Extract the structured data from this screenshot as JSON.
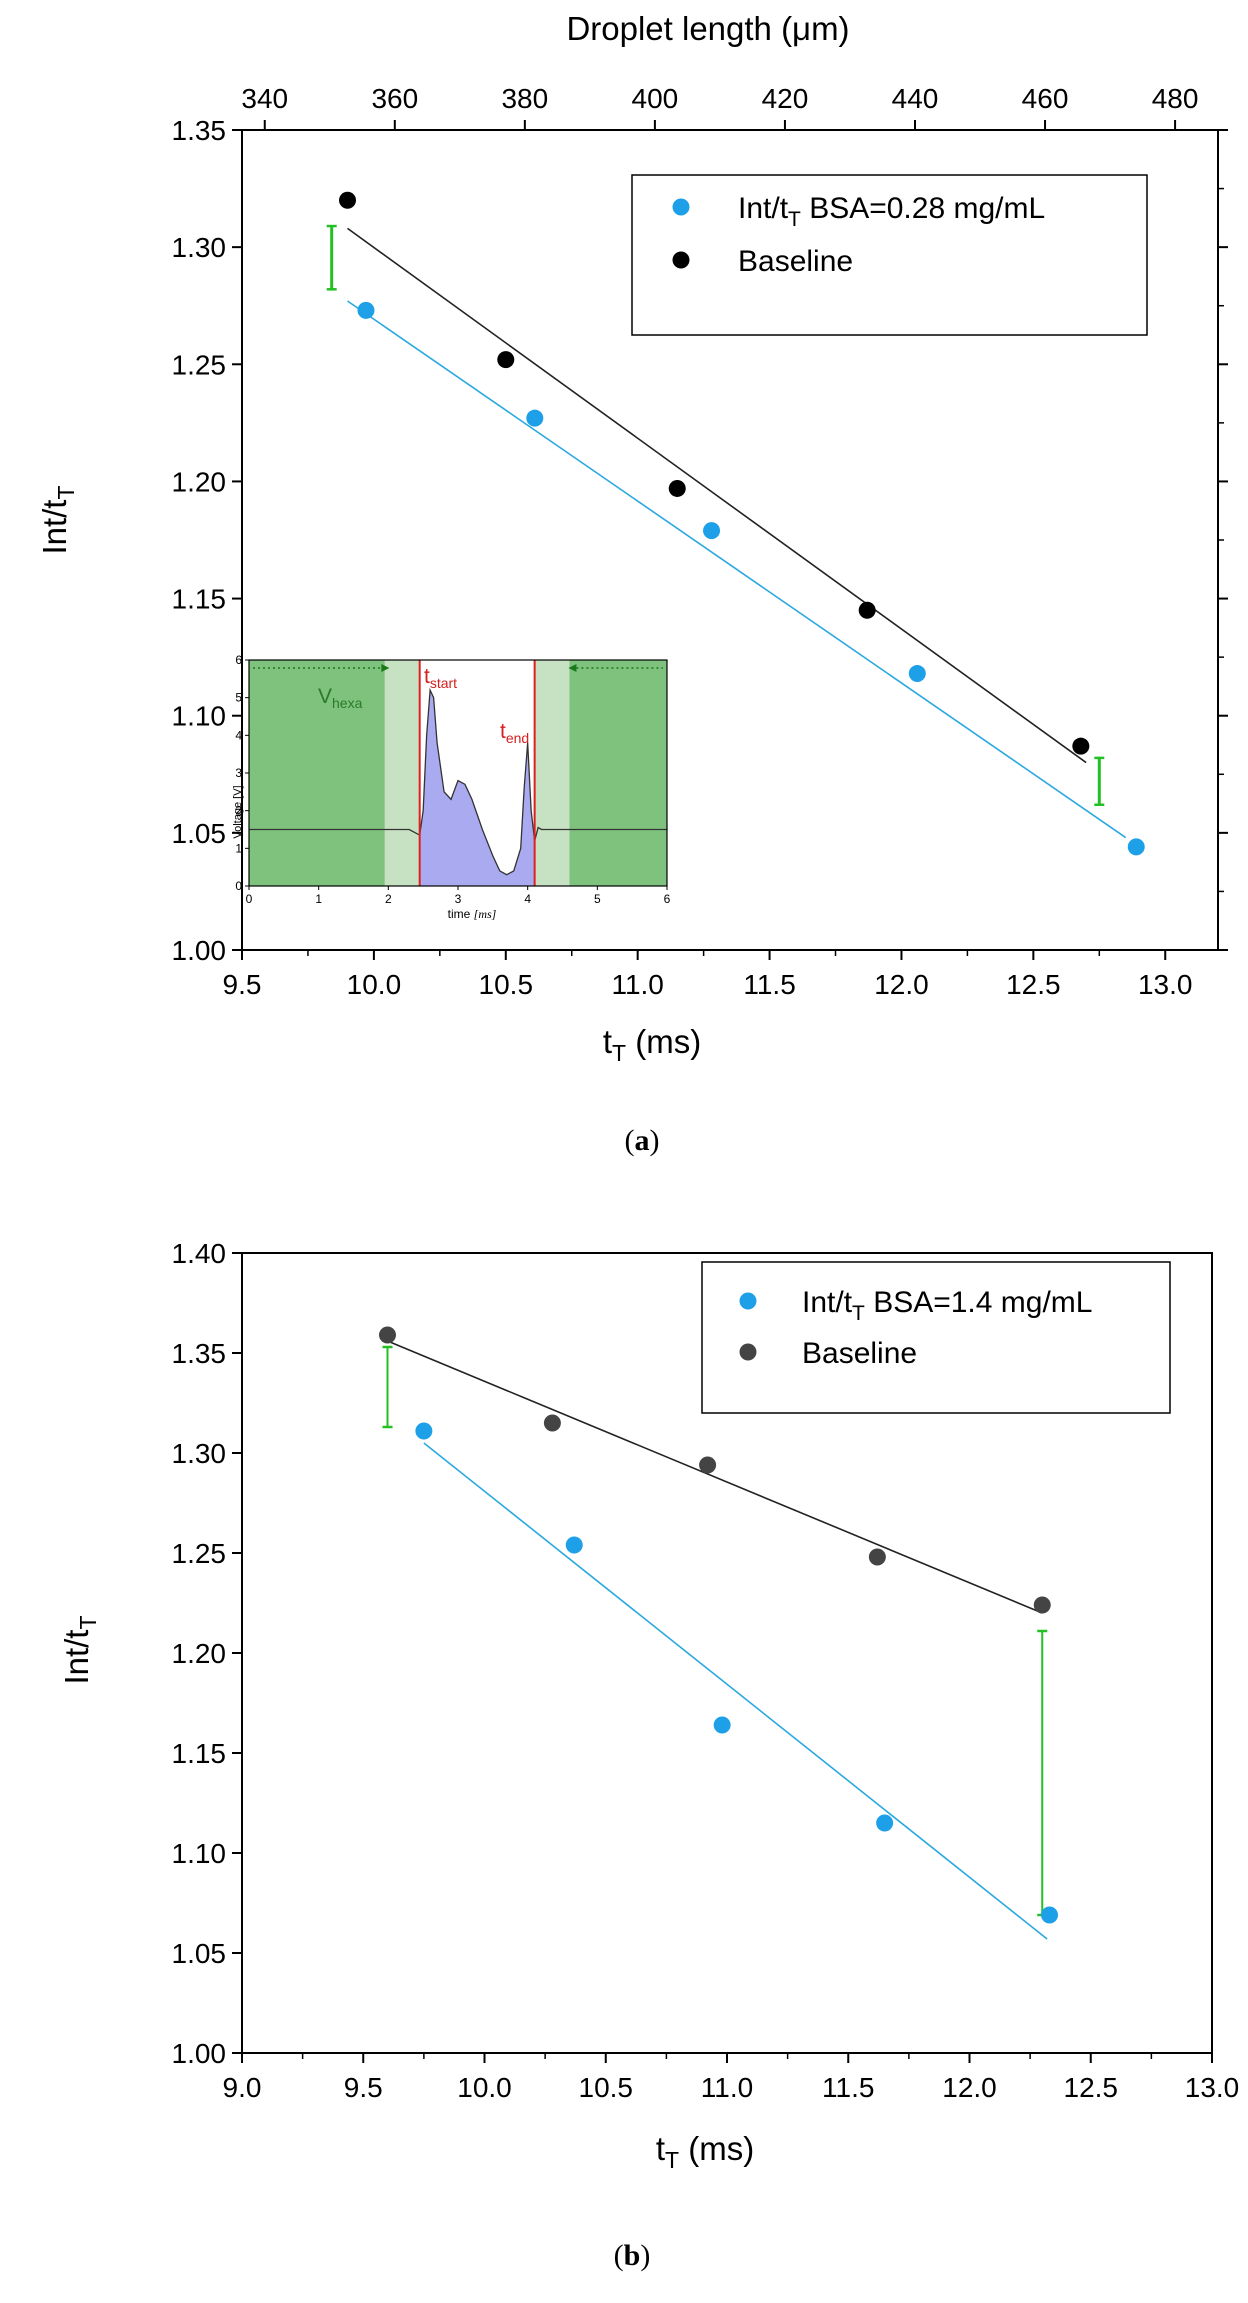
{
  "chart_data": [
    {
      "type": "scatter",
      "panel_label": "(a)",
      "panel_letter": "a",
      "title": "",
      "xlabel": "t",
      "xlabel_sub": "T",
      "xlabel_unit": " (ms)",
      "ylabel": "Int/t",
      "ylabel_sub": "T",
      "top_xlabel": "Droplet length (μm)",
      "xlim": [
        9.5,
        13.2
      ],
      "ylim": [
        1.0,
        1.35
      ],
      "top_xlim": [
        336.5,
        486.6
      ],
      "xticks": [
        "9.5",
        "10.0",
        "10.5",
        "11.0",
        "11.5",
        "12.0",
        "12.5",
        "13.0"
      ],
      "yticks": [
        "1.00",
        "1.05",
        "1.10",
        "1.15",
        "1.20",
        "1.25",
        "1.30",
        "1.35"
      ],
      "top_xticks": [
        "340",
        "360",
        "380",
        "400",
        "420",
        "440",
        "460",
        "480"
      ],
      "legend_position": "top-right",
      "series": [
        {
          "name": "Int/tT BSA=0.28 mg/mL",
          "legend_main": "Int/t",
          "legend_sub": "T",
          "legend_rest": " BSA=0.28 mg/mL",
          "color": "#1EA0E8",
          "x": [
            9.97,
            10.61,
            11.28,
            12.06,
            12.89
          ],
          "y": [
            1.273,
            1.227,
            1.179,
            1.118,
            1.044
          ],
          "fit": [
            [
              9.9,
              1.277
            ],
            [
              12.85,
              1.048
            ]
          ]
        },
        {
          "name": "Baseline",
          "legend_main": "Baseline",
          "legend_sub": "",
          "legend_rest": "",
          "color": "#000000",
          "x": [
            9.9,
            10.5,
            11.15,
            11.87,
            12.68
          ],
          "y": [
            1.32,
            1.252,
            1.197,
            1.145,
            1.087
          ],
          "fit": [
            [
              9.9,
              1.308
            ],
            [
              12.7,
              1.08
            ]
          ]
        }
      ],
      "difference_markers": [
        {
          "x": 9.84,
          "y_low": 1.282,
          "y_high": 1.309
        },
        {
          "x": 12.75,
          "y_low": 1.062,
          "y_high": 1.082
        }
      ]
    },
    {
      "type": "line",
      "inset": true,
      "xlabel": "time",
      "xlabel_unit": "[ms]",
      "ylabel": "Voltage [V]",
      "xlim": [
        0,
        6
      ],
      "ylim": [
        0,
        6
      ],
      "xticks": [
        "0",
        "1",
        "2",
        "3",
        "4",
        "5",
        "6"
      ],
      "yticks": [
        "0",
        "1",
        "2",
        "3",
        "4",
        "5",
        "6"
      ],
      "annotations": {
        "hexa": "V",
        "hexa_sub": "hexa",
        "start": "t",
        "start_sub": "start",
        "end": "t",
        "end_sub": "end"
      },
      "t_start": 2.45,
      "t_end": 4.1,
      "x": [
        0,
        2.3,
        2.45,
        2.5,
        2.55,
        2.6,
        2.65,
        2.7,
        2.8,
        2.9,
        3.0,
        3.1,
        3.2,
        3.35,
        3.5,
        3.6,
        3.7,
        3.8,
        3.9,
        3.95,
        4.0,
        4.05,
        4.1,
        4.15,
        4.2,
        6
      ],
      "y": [
        1.5,
        1.5,
        1.35,
        2.0,
        4.0,
        5.2,
        5.0,
        3.8,
        2.5,
        2.3,
        2.8,
        2.7,
        2.3,
        1.5,
        0.8,
        0.4,
        0.3,
        0.4,
        1.0,
        2.6,
        3.8,
        2.0,
        1.2,
        1.55,
        1.5,
        1.5
      ]
    },
    {
      "type": "scatter",
      "panel_label": "(b)",
      "panel_letter": "b",
      "title": "",
      "xlabel": "t",
      "xlabel_sub": "T",
      "xlabel_unit": " (ms)",
      "ylabel": "Int/t",
      "ylabel_sub": "T",
      "xlim": [
        9.0,
        13.0
      ],
      "ylim": [
        1.0,
        1.4
      ],
      "xticks": [
        "9.0",
        "9.5",
        "10.0",
        "10.5",
        "11.0",
        "11.5",
        "12.0",
        "12.5",
        "13.0"
      ],
      "yticks": [
        "1.00",
        "1.05",
        "1.10",
        "1.15",
        "1.20",
        "1.25",
        "1.30",
        "1.35",
        "1.40"
      ],
      "legend_position": "top-right",
      "series": [
        {
          "name": "Int/tT BSA=1.4 mg/mL",
          "legend_main": "Int/t",
          "legend_sub": "T",
          "legend_rest": " BSA=1.4 mg/mL",
          "color": "#1EA0E8",
          "x": [
            9.75,
            10.37,
            10.98,
            11.65,
            12.33
          ],
          "y": [
            1.311,
            1.254,
            1.164,
            1.115,
            1.069
          ],
          "fit": [
            [
              9.75,
              1.305
            ],
            [
              12.32,
              1.057
            ]
          ]
        },
        {
          "name": "Baseline",
          "legend_main": "Baseline",
          "legend_sub": "",
          "legend_rest": "",
          "color": "#444444",
          "x": [
            9.6,
            10.28,
            10.92,
            11.62,
            12.3
          ],
          "y": [
            1.359,
            1.315,
            1.294,
            1.248,
            1.224
          ],
          "fit": [
            [
              9.6,
              1.356
            ],
            [
              12.3,
              1.22
            ]
          ]
        }
      ],
      "difference_markers": [
        {
          "x": 9.6,
          "y_low": 1.313,
          "y_high": 1.353
        },
        {
          "x": 12.3,
          "y_low": 1.069,
          "y_high": 1.211
        }
      ]
    }
  ]
}
